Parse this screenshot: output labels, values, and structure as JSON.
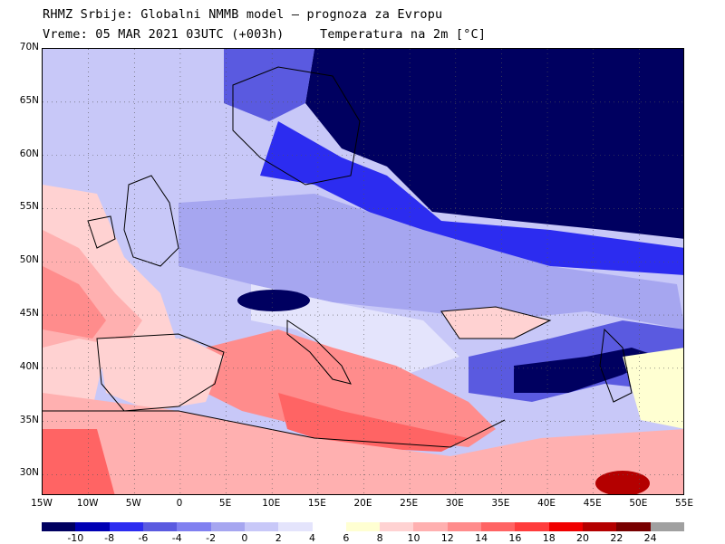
{
  "header": {
    "line1": "RHMZ Srbije: Globalni NMMB model — prognoza za Evropu",
    "line2": "Vreme: 05 MAR 2021 03UTC (+003h)",
    "parameter": "Temperatura na 2m [°C]"
  },
  "map": {
    "lon_range": [
      -15,
      55
    ],
    "lat_range": [
      28,
      70
    ],
    "lat_labels": [
      "70N",
      "65N",
      "60N",
      "55N",
      "50N",
      "45N",
      "40N",
      "35N",
      "30N"
    ],
    "lat_values": [
      70,
      65,
      60,
      55,
      50,
      45,
      40,
      35,
      30
    ],
    "lon_labels": [
      "15W",
      "10W",
      "5W",
      "0",
      "5E",
      "10E",
      "15E",
      "20E",
      "25E",
      "30E",
      "35E",
      "40E",
      "45E",
      "50E",
      "55E"
    ],
    "lon_values": [
      -15,
      -10,
      -5,
      0,
      5,
      10,
      15,
      20,
      25,
      30,
      35,
      40,
      45,
      50,
      55
    ],
    "grid": true,
    "field": "temperature at 2m"
  },
  "legend": {
    "labels": [
      "-10",
      "-8",
      "-6",
      "-4",
      "-2",
      "0",
      "2",
      "4",
      "6",
      "8",
      "10",
      "12",
      "14",
      "16",
      "18",
      "20",
      "22",
      "24"
    ],
    "colors": [
      "#000060",
      "#0000b4",
      "#2c2cf0",
      "#5a5ae0",
      "#8080f0",
      "#a6a6f0",
      "#c8c8f8",
      "#e4e4fc",
      "#ffffff",
      "#ffffd2",
      "#ffd2d2",
      "#ffb0b0",
      "#ff8c8c",
      "#ff6464",
      "#ff3c3c",
      "#f00000",
      "#b40000",
      "#780000",
      "#a0a0a0"
    ]
  }
}
